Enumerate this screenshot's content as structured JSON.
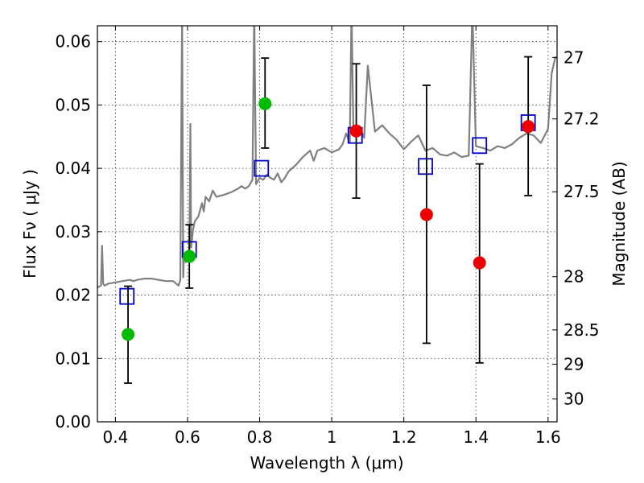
{
  "chart_data": {
    "type": "scatter",
    "xlabel": "Wavelength  λ (μm)",
    "ylabel": "Flux  Fν  ( μJy )",
    "ylabel_right": "Magnitude (AB)",
    "xlim": [
      0.35,
      1.625
    ],
    "ylim": [
      0.0,
      0.0625
    ],
    "grid": true,
    "x_ticks": [
      0.4,
      0.6,
      0.8,
      1.0,
      1.2,
      1.4,
      1.6
    ],
    "x_tick_labels": [
      "0.4",
      "0.6",
      "0.8",
      "1",
      "1.2",
      "1.4",
      "1.6"
    ],
    "y_ticks": [
      0.0,
      0.01,
      0.02,
      0.03,
      0.04,
      0.05,
      0.06
    ],
    "y_tick_labels": [
      "0.00",
      "0.01",
      "0.02",
      "0.03",
      "0.04",
      "0.05",
      "0.06"
    ],
    "right_ticks": [
      {
        "label": "27",
        "flux": 0.0575
      },
      {
        "label": "27.2",
        "flux": 0.0478
      },
      {
        "label": "27.5",
        "flux": 0.0363
      },
      {
        "label": "28",
        "flux": 0.0229
      },
      {
        "label": "28.5",
        "flux": 0.0145
      },
      {
        "label": "29",
        "flux": 0.0091
      },
      {
        "label": "30",
        "flux": 0.0036
      }
    ],
    "series": [
      {
        "color": "#808080",
        "style": "line",
        "x": [
          0.35,
          0.36,
          0.363,
          0.366,
          0.37,
          0.38,
          0.4,
          0.42,
          0.44,
          0.45,
          0.46,
          0.48,
          0.5,
          0.52,
          0.54,
          0.56,
          0.575,
          0.58,
          0.585,
          0.588,
          0.59,
          0.595,
          0.6,
          0.605,
          0.608,
          0.61,
          0.615,
          0.62,
          0.63,
          0.64,
          0.645,
          0.65,
          0.66,
          0.67,
          0.68,
          0.7,
          0.72,
          0.74,
          0.75,
          0.76,
          0.77,
          0.78,
          0.785,
          0.79,
          0.8,
          0.81,
          0.82,
          0.83,
          0.84,
          0.85,
          0.86,
          0.87,
          0.88,
          0.9,
          0.92,
          0.94,
          0.95,
          0.96,
          0.98,
          1.0,
          1.02,
          1.03,
          1.04,
          1.05,
          1.055,
          1.06,
          1.07,
          1.08,
          1.09,
          1.1,
          1.12,
          1.14,
          1.16,
          1.18,
          1.2,
          1.22,
          1.24,
          1.26,
          1.28,
          1.3,
          1.32,
          1.34,
          1.36,
          1.38,
          1.39,
          1.4,
          1.42,
          1.44,
          1.46,
          1.48,
          1.5,
          1.52,
          1.54,
          1.56,
          1.58,
          1.6,
          1.61,
          1.62,
          1.625
        ],
        "y": [
          0.0212,
          0.0215,
          0.0278,
          0.0218,
          0.0215,
          0.0218,
          0.022,
          0.0222,
          0.0224,
          0.0222,
          0.0224,
          0.0226,
          0.0226,
          0.0224,
          0.0222,
          0.0222,
          0.0215,
          0.0224,
          0.065,
          0.0228,
          0.0262,
          0.0252,
          0.0262,
          0.027,
          0.047,
          0.0275,
          0.0302,
          0.0316,
          0.0324,
          0.0345,
          0.0332,
          0.0355,
          0.0348,
          0.0365,
          0.0355,
          0.0358,
          0.0362,
          0.0368,
          0.0372,
          0.0368,
          0.0372,
          0.0382,
          0.065,
          0.0375,
          0.0385,
          0.0382,
          0.039,
          0.0385,
          0.0382,
          0.0392,
          0.0378,
          0.0385,
          0.0395,
          0.0405,
          0.0418,
          0.0428,
          0.0412,
          0.0428,
          0.0432,
          0.0425,
          0.043,
          0.0438,
          0.0455,
          0.044,
          0.065,
          0.046,
          0.0458,
          0.0462,
          0.0448,
          0.0562,
          0.0458,
          0.0468,
          0.0455,
          0.0445,
          0.043,
          0.0442,
          0.0452,
          0.0428,
          0.0432,
          0.0422,
          0.042,
          0.0425,
          0.0418,
          0.042,
          0.065,
          0.0435,
          0.0432,
          0.0428,
          0.0435,
          0.0432,
          0.0438,
          0.0448,
          0.0455,
          0.0452,
          0.044,
          0.0462,
          0.055,
          0.0575,
          0.0575
        ]
      },
      {
        "color": "#0000cc",
        "style": "open-square",
        "x": [
          0.432,
          0.605,
          0.805,
          1.065,
          1.26,
          1.41,
          1.545
        ],
        "y": [
          0.0198,
          0.0272,
          0.04,
          0.0452,
          0.0403,
          0.0436,
          0.0472
        ]
      },
      {
        "color": "#00bb00",
        "style": "filled-circle",
        "x": [
          0.435,
          0.605,
          0.815
        ],
        "y": [
          0.0138,
          0.0261,
          0.0502
        ],
        "err_low": [
          0.0061,
          0.0211,
          0.0432
        ],
        "err_high": [
          0.0214,
          0.0311,
          0.0574
        ]
      },
      {
        "color": "#ee0000",
        "style": "filled-circle",
        "x": [
          1.068,
          1.263,
          1.41,
          1.545
        ],
        "y": [
          0.0459,
          0.0327,
          0.0251,
          0.0466
        ],
        "err_low": [
          0.0353,
          0.0124,
          0.0093,
          0.0357
        ],
        "err_high": [
          0.0565,
          0.0531,
          0.0407,
          0.0576
        ]
      }
    ]
  }
}
